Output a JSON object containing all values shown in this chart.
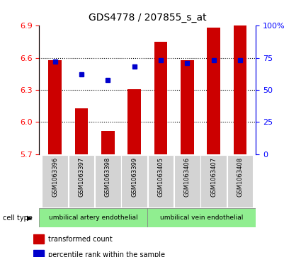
{
  "title": "GDS4778 / 207855_s_at",
  "samples": [
    "GSM1063396",
    "GSM1063397",
    "GSM1063398",
    "GSM1063399",
    "GSM1063405",
    "GSM1063406",
    "GSM1063407",
    "GSM1063408"
  ],
  "transformed_count": [
    6.58,
    6.13,
    5.92,
    6.31,
    6.75,
    6.58,
    6.88,
    6.9
  ],
  "percentile_rank": [
    72,
    62,
    58,
    68,
    73,
    71,
    73,
    73
  ],
  "ylim": [
    5.7,
    6.9
  ],
  "yticks": [
    5.7,
    6.0,
    6.3,
    6.6,
    6.9
  ],
  "right_yticks": [
    0,
    25,
    50,
    75,
    100
  ],
  "right_ylim": [
    0,
    100
  ],
  "bar_color": "#cc0000",
  "dot_color": "#0000cc",
  "cell_types": [
    "umbilical artery endothelial",
    "umbilical vein endothelial"
  ],
  "cell_type_ranges": [
    4,
    4
  ],
  "group1_color": "#90ee90",
  "group2_color": "#90ee90",
  "background_color": "#f0f0f0",
  "plot_bg": "#ffffff",
  "legend_red": "transformed count",
  "legend_blue": "percentile rank within the sample"
}
